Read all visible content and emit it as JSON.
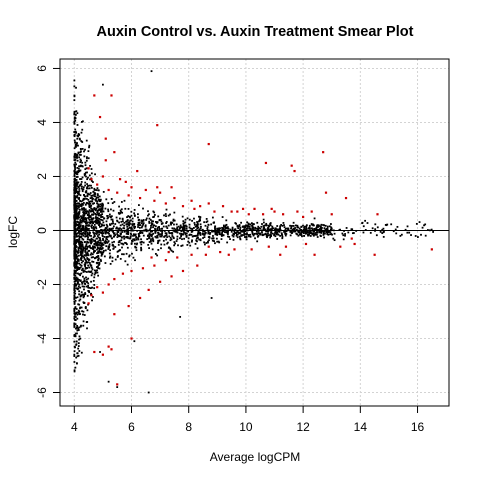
{
  "chart_data": {
    "type": "scatter",
    "title": "Auxin Control vs. Auxin Treatment Smear Plot",
    "xlabel": "Average logCPM",
    "ylabel": "logFC",
    "xlim": [
      3.5,
      17.1
    ],
    "ylim": [
      -6.5,
      6.35
    ],
    "x_ticks": [
      "4",
      "6",
      "8",
      "10",
      "12",
      "14",
      "16"
    ],
    "y_ticks": [
      "-6",
      "-4",
      "-2",
      "0",
      "2",
      "4",
      "6"
    ],
    "grid": true,
    "reference_line_y": 0,
    "colors": {
      "non_significant": "#000000",
      "significant": "#cc0000"
    },
    "series": [
      {
        "points_significant": [
          [
            4.7,
            5.0
          ],
          [
            5.3,
            5.0
          ],
          [
            4.9,
            4.2
          ],
          [
            5.1,
            3.4
          ],
          [
            6.9,
            3.9
          ],
          [
            8.7,
            3.2
          ],
          [
            12.7,
            2.9
          ],
          [
            11.6,
            2.4
          ],
          [
            11.7,
            2.2
          ],
          [
            10.7,
            2.5
          ],
          [
            12.8,
            1.4
          ],
          [
            13.5,
            1.2
          ],
          [
            5.4,
            2.9
          ],
          [
            5.1,
            2.6
          ],
          [
            6.2,
            2.2
          ],
          [
            5.0,
            2.0
          ],
          [
            5.8,
            1.8
          ],
          [
            6.0,
            1.6
          ],
          [
            6.5,
            1.5
          ],
          [
            7.0,
            1.4
          ],
          [
            7.5,
            1.2
          ],
          [
            8.1,
            1.1
          ],
          [
            8.7,
            1.0
          ],
          [
            9.2,
            0.9
          ],
          [
            9.7,
            0.7
          ],
          [
            10.3,
            0.8
          ],
          [
            11.0,
            0.7
          ],
          [
            5.6,
            1.9
          ],
          [
            6.9,
            1.6
          ],
          [
            7.4,
            1.6
          ],
          [
            8.4,
            0.9
          ],
          [
            9.9,
            0.8
          ],
          [
            10.9,
            0.8
          ],
          [
            11.8,
            0.7
          ],
          [
            12.3,
            0.7
          ],
          [
            13.0,
            0.6
          ],
          [
            14.6,
            0.6
          ],
          [
            4.5,
            2.3
          ],
          [
            4.6,
            1.9
          ],
          [
            4.8,
            1.7
          ],
          [
            5.2,
            1.5
          ],
          [
            5.5,
            1.4
          ],
          [
            5.9,
            1.3
          ],
          [
            6.3,
            1.2
          ],
          [
            6.8,
            1.1
          ],
          [
            7.2,
            1.0
          ],
          [
            7.8,
            0.9
          ],
          [
            8.2,
            0.8
          ],
          [
            8.9,
            0.7
          ],
          [
            9.5,
            0.7
          ],
          [
            10.1,
            0.6
          ],
          [
            10.6,
            0.6
          ],
          [
            11.3,
            0.6
          ],
          [
            12.0,
            0.5
          ],
          [
            4.5,
            -2.7
          ],
          [
            4.6,
            -2.4
          ],
          [
            4.8,
            -2.1
          ],
          [
            5.0,
            -2.3
          ],
          [
            5.2,
            -2.0
          ],
          [
            5.4,
            -1.8
          ],
          [
            5.7,
            -1.6
          ],
          [
            6.0,
            -1.5
          ],
          [
            6.4,
            -1.4
          ],
          [
            6.8,
            -1.3
          ],
          [
            7.2,
            -1.1
          ],
          [
            7.6,
            -1.0
          ],
          [
            8.1,
            -0.9
          ],
          [
            8.6,
            -0.9
          ],
          [
            9.1,
            -0.8
          ],
          [
            9.6,
            -0.7
          ],
          [
            10.2,
            -0.7
          ],
          [
            10.8,
            -0.6
          ],
          [
            11.4,
            -0.6
          ],
          [
            12.1,
            -0.5
          ],
          [
            13.7,
            -0.3
          ],
          [
            13.8,
            -0.5
          ],
          [
            14.5,
            -0.9
          ],
          [
            16.5,
            -0.7
          ],
          [
            4.7,
            -4.5
          ],
          [
            5.0,
            -4.6
          ],
          [
            5.2,
            -4.3
          ],
          [
            5.3,
            -4.4
          ],
          [
            5.5,
            -5.7
          ],
          [
            6.0,
            -4.0
          ],
          [
            5.4,
            -3.1
          ],
          [
            5.9,
            -2.8
          ],
          [
            6.3,
            -2.5
          ],
          [
            6.6,
            -2.2
          ],
          [
            7.0,
            -1.9
          ],
          [
            7.4,
            -1.7
          ],
          [
            7.8,
            -1.5
          ],
          [
            8.3,
            -1.3
          ],
          [
            6.7,
            -1.0
          ],
          [
            7.3,
            -0.8
          ],
          [
            8.7,
            -0.6
          ],
          [
            9.4,
            -0.9
          ],
          [
            11.2,
            -0.9
          ],
          [
            12.4,
            -0.9
          ],
          [
            13.3,
            -0.6
          ]
        ]
      }
    ]
  }
}
